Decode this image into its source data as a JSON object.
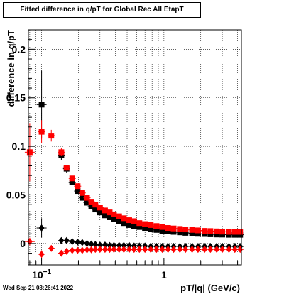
{
  "title": "Fitted difference in q/pT for Global Rec All EtapT",
  "timestamp": "Wed Sep 21 08:26:41 2022",
  "chart_data": {
    "type": "scatter",
    "xlabel": "pT/|q| (GeV/c)",
    "ylabel": "difference in q/pT",
    "xscale": "log",
    "xlim": [
      0.078,
      4.3
    ],
    "ylim": [
      -0.022,
      0.22
    ],
    "grid": true,
    "x_ticks": [
      {
        "value": 0.1,
        "label": "10",
        "exponent": "−1"
      },
      {
        "value": 1,
        "label": "1"
      }
    ],
    "y_ticks": [
      {
        "value": 0,
        "label": "0"
      },
      {
        "value": 0.05,
        "label": "0.05"
      },
      {
        "value": 0.1,
        "label": "0.1"
      },
      {
        "value": 0.15,
        "label": "0.15"
      },
      {
        "value": 0.2,
        "label": "0.2"
      }
    ],
    "series": [
      {
        "color": "#000000",
        "marker": "square",
        "x": [
          0.1,
          0.145,
          0.16,
          0.178,
          0.197,
          0.215,
          0.235,
          0.255,
          0.275,
          0.3,
          0.33,
          0.36,
          0.39,
          0.43,
          0.47,
          0.52,
          0.57,
          0.63,
          0.7,
          0.78,
          0.87,
          0.97,
          1.08,
          1.2,
          1.35,
          1.5,
          1.7,
          1.9,
          2.15,
          2.4,
          2.7,
          3.0,
          3.4,
          3.8,
          4.2
        ],
        "y": [
          0.143,
          0.091,
          0.077,
          0.063,
          0.054,
          0.047,
          0.042,
          0.038,
          0.035,
          0.032,
          0.029,
          0.027,
          0.025,
          0.023,
          0.021,
          0.019,
          0.018,
          0.017,
          0.016,
          0.015,
          0.014,
          0.013,
          0.0125,
          0.012,
          0.0115,
          0.011,
          0.0105,
          0.01,
          0.0098,
          0.0095,
          0.0093,
          0.0092,
          0.009,
          0.009,
          0.009
        ],
        "y_err": [
          0.035,
          0.005,
          0.004,
          0.003,
          0.002,
          0.002,
          0.002,
          0.002,
          0.002,
          0.002,
          0.002,
          0.001,
          0.001,
          0.001,
          0.001,
          0.001,
          0.001,
          0.001,
          0.001,
          0.001,
          0.001,
          0.001,
          0.001,
          0.001,
          0.001,
          0.001,
          0.001,
          0.001,
          0.001,
          0.001,
          0.001,
          0.001,
          0.001,
          0.001,
          0.001
        ]
      },
      {
        "color": "#ff0000",
        "marker": "square",
        "x": [
          0.08,
          0.1,
          0.12,
          0.145,
          0.16,
          0.178,
          0.197,
          0.215,
          0.235,
          0.255,
          0.275,
          0.3,
          0.33,
          0.36,
          0.39,
          0.43,
          0.47,
          0.52,
          0.57,
          0.63,
          0.7,
          0.78,
          0.87,
          0.97,
          1.08,
          1.2,
          1.35,
          1.5,
          1.7,
          1.9,
          2.15,
          2.4,
          2.7,
          3.0,
          3.4,
          3.8,
          4.2
        ],
        "y": [
          0.094,
          0.115,
          0.111,
          0.094,
          0.078,
          0.067,
          0.059,
          0.052,
          0.047,
          0.043,
          0.04,
          0.037,
          0.034,
          0.032,
          0.03,
          0.028,
          0.026,
          0.024,
          0.023,
          0.021,
          0.02,
          0.019,
          0.018,
          0.017,
          0.016,
          0.0155,
          0.015,
          0.0145,
          0.014,
          0.0135,
          0.013,
          0.0128,
          0.0125,
          0.0122,
          0.012,
          0.012,
          0.012
        ],
        "y_err": [
          0.03,
          0.012,
          0.006,
          0.004,
          0.003,
          0.002,
          0.002,
          0.002,
          0.002,
          0.002,
          0.002,
          0.002,
          0.002,
          0.001,
          0.001,
          0.001,
          0.001,
          0.001,
          0.001,
          0.001,
          0.001,
          0.001,
          0.001,
          0.001,
          0.001,
          0.001,
          0.001,
          0.001,
          0.001,
          0.001,
          0.001,
          0.001,
          0.001,
          0.001,
          0.001,
          0.001,
          0.001
        ]
      },
      {
        "color": "#000000",
        "marker": "diamond",
        "x": [
          0.1,
          0.145,
          0.16,
          0.178,
          0.197,
          0.215,
          0.235,
          0.255,
          0.275,
          0.3,
          0.33,
          0.36,
          0.39,
          0.43,
          0.47,
          0.52,
          0.57,
          0.63,
          0.7,
          0.78,
          0.87,
          0.97,
          1.08,
          1.2,
          1.35,
          1.5,
          1.7,
          1.9,
          2.15,
          2.4,
          2.7,
          3.0,
          3.4,
          3.8,
          4.2
        ],
        "y": [
          0.016,
          0.003,
          0.003,
          0.002,
          0.0015,
          0.001,
          0.0,
          -0.0005,
          -0.001,
          -0.0015,
          -0.0015,
          -0.002,
          -0.002,
          -0.002,
          -0.002,
          -0.002,
          -0.0025,
          -0.0025,
          -0.0025,
          -0.003,
          -0.003,
          -0.003,
          -0.003,
          -0.003,
          -0.003,
          -0.003,
          -0.003,
          -0.003,
          -0.003,
          -0.003,
          -0.003,
          -0.003,
          -0.003,
          -0.003,
          -0.003
        ],
        "y_err": [
          0.01,
          0.003,
          0.002,
          0.002,
          0.002,
          0.001,
          0.001,
          0.001,
          0.001,
          0.001,
          0.001,
          0.001,
          0.001,
          0.001,
          0.001,
          0.001,
          0.001,
          0.001,
          0.001,
          0.001,
          0.001,
          0.001,
          0.001,
          0.001,
          0.001,
          0.001,
          0.001,
          0.001,
          0.001,
          0.001,
          0.001,
          0.001,
          0.001,
          0.001,
          0.001
        ]
      },
      {
        "color": "#ff0000",
        "marker": "diamond",
        "x": [
          0.08,
          0.1,
          0.12,
          0.145,
          0.16,
          0.178,
          0.197,
          0.215,
          0.235,
          0.255,
          0.275,
          0.3,
          0.33,
          0.36,
          0.39,
          0.43,
          0.47,
          0.52,
          0.57,
          0.63,
          0.7,
          0.78,
          0.87,
          0.97,
          1.08,
          1.2,
          1.35,
          1.5,
          1.7,
          1.9,
          2.15,
          2.4,
          2.7,
          3.0,
          3.4,
          3.8,
          4.2
        ],
        "y": [
          0.002,
          -0.011,
          -0.005,
          -0.01,
          -0.008,
          -0.007,
          -0.007,
          -0.007,
          -0.0065,
          -0.0065,
          -0.006,
          -0.006,
          -0.006,
          -0.006,
          -0.006,
          -0.006,
          -0.006,
          -0.006,
          -0.006,
          -0.006,
          -0.006,
          -0.006,
          -0.006,
          -0.006,
          -0.006,
          -0.006,
          -0.006,
          -0.006,
          -0.006,
          -0.006,
          -0.006,
          -0.006,
          -0.006,
          -0.006,
          -0.006,
          -0.006,
          -0.006
        ],
        "y_err": [
          0.004,
          0.004,
          0.003,
          0.002,
          0.002,
          0.001,
          0.001,
          0.001,
          0.001,
          0.001,
          0.001,
          0.001,
          0.001,
          0.001,
          0.001,
          0.001,
          0.001,
          0.001,
          0.001,
          0.001,
          0.001,
          0.001,
          0.001,
          0.001,
          0.001,
          0.001,
          0.001,
          0.001,
          0.001,
          0.001,
          0.001,
          0.001,
          0.001,
          0.001,
          0.001,
          0.001,
          0.001
        ]
      }
    ]
  }
}
